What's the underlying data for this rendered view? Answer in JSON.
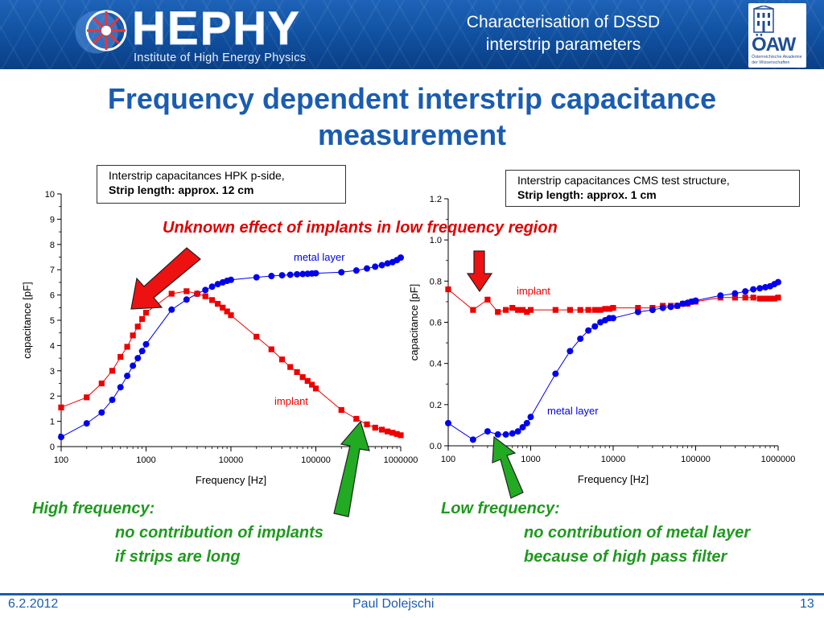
{
  "header": {
    "logo_text": "HEPHY",
    "logo_subtitle": "Institute of High Energy Physics",
    "title_line1": "Characterisation of DSSD",
    "title_line2": "interstrip parameters",
    "oaw_text": "ÖAW",
    "oaw_sub1": "Österreichische Akademie",
    "oaw_sub2": "der Wissenschaften",
    "accent_color": "#1a5cb0"
  },
  "slide": {
    "title_line1": "Frequency dependent interstrip capacitance",
    "title_line2": "measurement",
    "annotation_red": "Unknown effect of implants in low frequency region",
    "left_note_title": "High frequency:",
    "left_note_line1": "no contribution of implants",
    "left_note_line2": "if strips are long",
    "right_note_title": "Low frequency:",
    "right_note_line1": "no contribution of metal layer",
    "right_note_line2": "because of high pass filter"
  },
  "footer": {
    "date": "6.2.2012",
    "author": "Paul Dolejschi",
    "page": "13"
  },
  "chart_data": [
    {
      "type": "scatter",
      "caption_line1": "Interstrip capacitances HPK p-side,",
      "caption_line2": "Strip length: approx. 12 cm",
      "xlabel": "Frequency [Hz]",
      "ylabel": "capacitance [pF]",
      "xscale": "log",
      "xlim": [
        100,
        1000000
      ],
      "ylim": [
        0,
        10
      ],
      "x_ticks": [
        "100",
        "1000",
        "10000",
        "100000",
        "1000000"
      ],
      "y_ticks": [
        "0",
        "1",
        "2",
        "3",
        "4",
        "5",
        "6",
        "7",
        "8",
        "9",
        "10"
      ],
      "series": [
        {
          "name": "metal layer",
          "color": "#0000ee",
          "marker": "circle",
          "x": [
            100,
            200,
            300,
            400,
            500,
            600,
            700,
            800,
            900,
            1000,
            2000,
            3000,
            4000,
            5000,
            6000,
            7000,
            8000,
            9000,
            10000,
            20000,
            30000,
            40000,
            50000,
            60000,
            70000,
            80000,
            90000,
            100000,
            200000,
            300000,
            400000,
            500000,
            600000,
            700000,
            800000,
            900000,
            1000000
          ],
          "y": [
            0.38,
            0.92,
            1.35,
            1.85,
            2.35,
            2.8,
            3.2,
            3.5,
            3.78,
            4.05,
            5.42,
            5.82,
            6.05,
            6.2,
            6.33,
            6.43,
            6.5,
            6.56,
            6.6,
            6.7,
            6.75,
            6.78,
            6.8,
            6.82,
            6.83,
            6.84,
            6.85,
            6.86,
            6.9,
            6.97,
            7.05,
            7.12,
            7.18,
            7.25,
            7.3,
            7.38,
            7.48
          ]
        },
        {
          "name": "implant",
          "color": "#ee0000",
          "marker": "square",
          "x": [
            100,
            200,
            300,
            400,
            500,
            600,
            700,
            800,
            900,
            1000,
            2000,
            3000,
            4000,
            5000,
            6000,
            7000,
            8000,
            9000,
            10000,
            20000,
            30000,
            40000,
            50000,
            60000,
            70000,
            80000,
            90000,
            100000,
            200000,
            300000,
            400000,
            500000,
            600000,
            700000,
            800000,
            900000,
            1000000
          ],
          "y": [
            1.55,
            1.95,
            2.5,
            3.0,
            3.55,
            3.95,
            4.4,
            4.75,
            5.05,
            5.3,
            6.05,
            6.15,
            6.05,
            5.95,
            5.8,
            5.65,
            5.5,
            5.35,
            5.2,
            4.35,
            3.85,
            3.45,
            3.15,
            2.95,
            2.75,
            2.6,
            2.45,
            2.3,
            1.45,
            1.1,
            0.88,
            0.75,
            0.67,
            0.6,
            0.55,
            0.5,
            0.45
          ]
        }
      ]
    },
    {
      "type": "scatter",
      "caption_line1": "Interstrip capacitances CMS test structure,",
      "caption_line2": "Strip length: approx. 1 cm",
      "xlabel": "Frequency [Hz]",
      "ylabel": "capacitance [pF]",
      "xscale": "log",
      "xlim": [
        100,
        1000000
      ],
      "ylim": [
        0,
        1.2
      ],
      "x_ticks": [
        "100",
        "1000",
        "10000",
        "100000",
        "1000000"
      ],
      "y_ticks": [
        "0.0",
        "0.2",
        "0.4",
        "0.6",
        "0.8",
        "1.0",
        "1.2"
      ],
      "series": [
        {
          "name": "implant",
          "color": "#ee0000",
          "marker": "square",
          "x": [
            100,
            200,
            300,
            400,
            500,
            600,
            700,
            800,
            900,
            1000,
            2000,
            3000,
            4000,
            5000,
            6000,
            7000,
            8000,
            9000,
            10000,
            20000,
            30000,
            40000,
            50000,
            60000,
            70000,
            80000,
            90000,
            100000,
            200000,
            300000,
            400000,
            500000,
            600000,
            700000,
            800000,
            900000,
            1000000
          ],
          "y": [
            0.76,
            0.66,
            0.71,
            0.65,
            0.66,
            0.67,
            0.66,
            0.66,
            0.65,
            0.66,
            0.66,
            0.66,
            0.66,
            0.66,
            0.66,
            0.66,
            0.665,
            0.665,
            0.67,
            0.67,
            0.67,
            0.68,
            0.68,
            0.68,
            0.69,
            0.69,
            0.7,
            0.7,
            0.72,
            0.72,
            0.72,
            0.72,
            0.715,
            0.715,
            0.715,
            0.715,
            0.72
          ]
        },
        {
          "name": "metal layer",
          "color": "#0000ee",
          "marker": "circle",
          "x": [
            100,
            200,
            300,
            400,
            500,
            600,
            700,
            800,
            900,
            1000,
            2000,
            3000,
            4000,
            5000,
            6000,
            7000,
            8000,
            9000,
            10000,
            20000,
            30000,
            40000,
            50000,
            60000,
            70000,
            80000,
            90000,
            100000,
            200000,
            300000,
            400000,
            500000,
            600000,
            700000,
            800000,
            900000,
            1000000
          ],
          "y": [
            0.11,
            0.03,
            0.07,
            0.055,
            0.055,
            0.06,
            0.07,
            0.09,
            0.11,
            0.14,
            0.35,
            0.46,
            0.52,
            0.56,
            0.58,
            0.6,
            0.61,
            0.62,
            0.62,
            0.65,
            0.66,
            0.67,
            0.675,
            0.68,
            0.69,
            0.695,
            0.7,
            0.705,
            0.73,
            0.74,
            0.75,
            0.76,
            0.765,
            0.77,
            0.775,
            0.785,
            0.795
          ]
        }
      ]
    }
  ]
}
